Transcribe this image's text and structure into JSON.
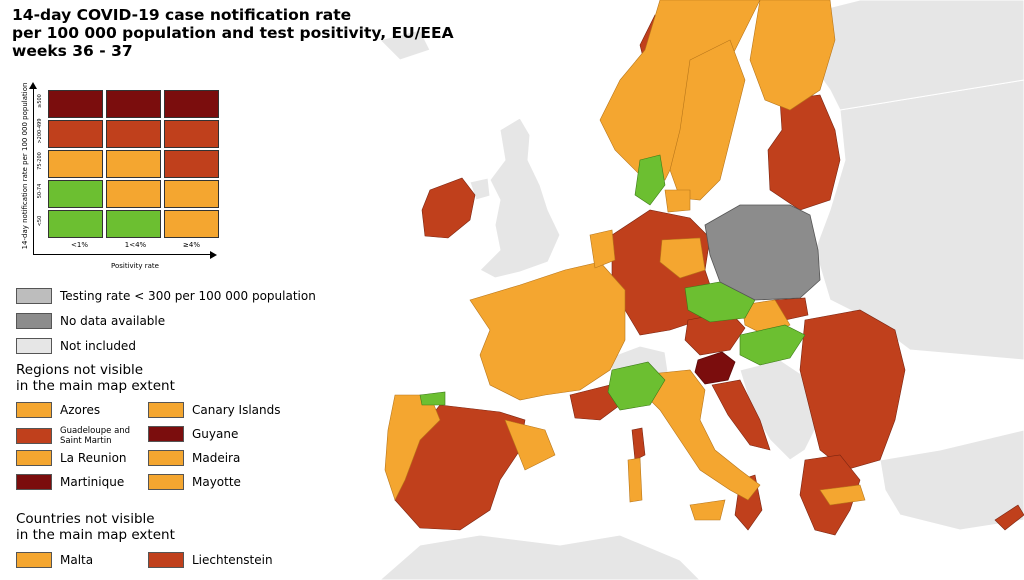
{
  "title": {
    "line1": "14-day COVID-19 case notification rate",
    "line2": "per 100 000 population and test positivity, EU/EEA",
    "line3": "weeks 36 - 37"
  },
  "matrix": {
    "y_axis_label": "14-day notification rate per 100 000 population",
    "x_axis_label": "Positivity rate",
    "rate_bands": [
      "≥500",
      ">200-499",
      "75-200",
      "50-74",
      "<50"
    ],
    "positivity_bands": [
      "<1%",
      "1<4%",
      "≥4%"
    ],
    "cells": [
      [
        "dark-red",
        "dark-red",
        "dark-red"
      ],
      [
        "red",
        "red",
        "red"
      ],
      [
        "orange",
        "orange",
        "red"
      ],
      [
        "green",
        "orange",
        "orange"
      ],
      [
        "green",
        "green",
        "orange"
      ]
    ]
  },
  "colors": {
    "dark-red": "#7b0d0d",
    "red": "#c0401c",
    "orange": "#f4a630",
    "green": "#6cbf31",
    "grey-testing": "#bdbdbd",
    "grey-nodata": "#8c8c8c",
    "grey-notincluded": "#e6e6e6",
    "sea": "#ffffff"
  },
  "legend": {
    "testing": "Testing rate < 300 per 100 000 population",
    "nodata": "No data available",
    "notincluded": "Not included"
  },
  "regions_heading": {
    "line1": "Regions not visible",
    "line2": "in the main map extent"
  },
  "regions": [
    {
      "label": "Azores",
      "color": "orange"
    },
    {
      "label": "Canary Islands",
      "color": "orange"
    },
    {
      "label": "Guadeloupe and Saint Martin",
      "color": "red"
    },
    {
      "label": "Guyane",
      "color": "dark-red"
    },
    {
      "label": "La Reunion",
      "color": "orange"
    },
    {
      "label": "Madeira",
      "color": "orange"
    },
    {
      "label": "Martinique",
      "color": "dark-red"
    },
    {
      "label": "Mayotte",
      "color": "orange"
    }
  ],
  "countries_heading": {
    "line1": "Countries not visible",
    "line2": "in the main map extent"
  },
  "countries": [
    {
      "label": "Malta",
      "color": "orange"
    },
    {
      "label": "Liechtenstein",
      "color": "red"
    }
  ]
}
